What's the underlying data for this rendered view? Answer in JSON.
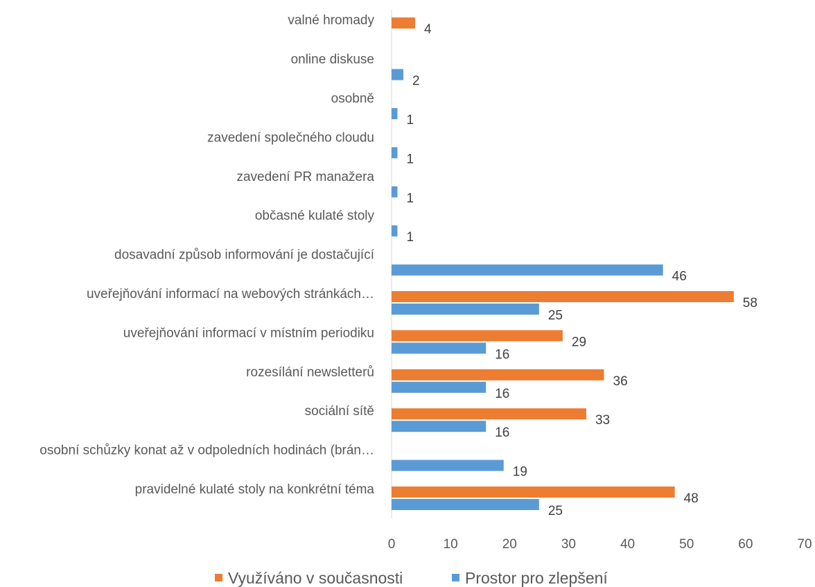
{
  "chart_data": {
    "type": "bar",
    "orientation": "horizontal",
    "categories": [
      "valné hromady",
      "online diskuse",
      "osobně",
      "zavedení společného cloudu",
      "zavedení PR manažera",
      "občasné kulaté stoly",
      "dosavadní způsob informování je dostačující",
      "uveřejňování informací na webových stránkách…",
      "uveřejňování informací v místním periodiku",
      "rozesílání newsletterů",
      "sociální sítě",
      "osobní schůzky konat až v odpoledních hodinách (brán…",
      "pravidelné kulaté stoly na konkrétní téma"
    ],
    "series": [
      {
        "name": "Využíváno v současnosti",
        "color": "#ED7D31",
        "values": [
          4,
          null,
          null,
          null,
          null,
          null,
          null,
          58,
          29,
          36,
          33,
          null,
          48
        ]
      },
      {
        "name": "Prostor pro zlepšení",
        "color": "#5B9BD5",
        "values": [
          null,
          2,
          1,
          1,
          1,
          1,
          46,
          25,
          16,
          16,
          16,
          19,
          25
        ]
      }
    ],
    "xlim": [
      0,
      70
    ],
    "xticks": [
      "0",
      "10",
      "20",
      "30",
      "40",
      "50",
      "60",
      "70"
    ],
    "grid": false,
    "legend_position": "bottom",
    "data_labels": true
  }
}
